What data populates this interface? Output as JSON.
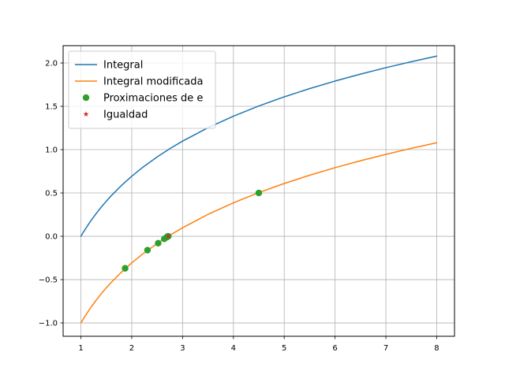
{
  "chart_data": {
    "type": "line",
    "title": "",
    "xlabel": "",
    "ylabel": "",
    "xlim": [
      0.65,
      8.35
    ],
    "ylim": [
      -1.154,
      2.2
    ],
    "grid": true,
    "legend_position": "upper-left",
    "x_ticks": [
      1,
      2,
      3,
      4,
      5,
      6,
      7,
      8
    ],
    "x_tick_labels": [
      "1",
      "2",
      "3",
      "4",
      "5",
      "6",
      "7",
      "8"
    ],
    "y_ticks": [
      -1.0,
      -0.5,
      0.0,
      0.5,
      1.0,
      1.5,
      2.0
    ],
    "y_tick_labels": [
      "−1.0",
      "−0.5",
      "0.0",
      "0.5",
      "1.0",
      "1.5",
      "2.0"
    ],
    "series": [
      {
        "name": "Integral",
        "kind": "line",
        "color": "#1f77b4",
        "x": [
          1.0,
          1.05,
          1.1,
          1.2,
          1.3,
          1.4,
          1.5,
          1.6,
          1.8,
          2.0,
          2.2,
          2.5,
          2.75,
          3.0,
          3.5,
          4.0,
          4.5,
          5.0,
          5.5,
          6.0,
          6.5,
          7.0,
          7.5,
          8.0
        ],
        "y": [
          0.0,
          0.0488,
          0.0953,
          0.1823,
          0.2624,
          0.3365,
          0.4055,
          0.47,
          0.5878,
          0.6931,
          0.7885,
          0.9163,
          1.0116,
          1.0986,
          1.2528,
          1.3863,
          1.5041,
          1.6094,
          1.7047,
          1.7918,
          1.8718,
          1.9459,
          2.0149,
          2.0794
        ]
      },
      {
        "name": "Integral modificada",
        "kind": "line",
        "color": "#ff7f0e",
        "x": [
          1.0,
          1.05,
          1.1,
          1.2,
          1.3,
          1.4,
          1.5,
          1.6,
          1.8,
          2.0,
          2.2,
          2.5,
          2.75,
          3.0,
          3.5,
          4.0,
          4.5,
          5.0,
          5.5,
          6.0,
          6.5,
          7.0,
          7.5,
          8.0
        ],
        "y": [
          -1.0,
          -0.9512,
          -0.9047,
          -0.8177,
          -0.7376,
          -0.6635,
          -0.5945,
          -0.53,
          -0.4122,
          -0.3069,
          -0.2115,
          -0.0837,
          0.0116,
          0.0986,
          0.2528,
          0.3863,
          0.5041,
          0.6094,
          0.7047,
          0.7918,
          0.8718,
          0.9459,
          1.0149,
          1.0794
        ]
      },
      {
        "name": "Proximaciones de e",
        "kind": "points",
        "marker": "circle",
        "color": "#2ca02c",
        "x": [
          4.5,
          1.87,
          2.31,
          2.52,
          2.64,
          2.69,
          2.71,
          2.72
        ],
        "y": [
          0.5,
          -0.37,
          -0.16,
          -0.08,
          -0.03,
          -0.01,
          0.0,
          0.0
        ]
      },
      {
        "name": "Igualdad",
        "kind": "points",
        "marker": "star",
        "color": "#d62728",
        "x": [
          2.718
        ],
        "y": [
          0.0
        ]
      }
    ]
  }
}
